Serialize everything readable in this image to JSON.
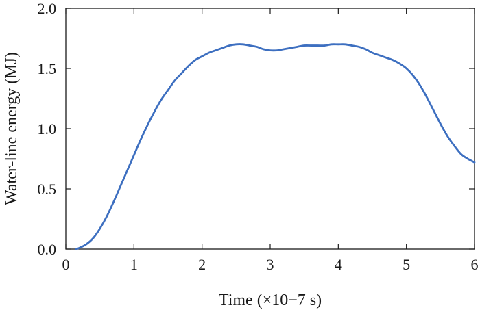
{
  "chart_data": {
    "type": "line",
    "xlabel": "Time (×10−7 s)",
    "ylabel": "Water-line energy (MJ)",
    "xlim": [
      0,
      6
    ],
    "ylim": [
      0,
      2
    ],
    "x_ticks": [
      "0",
      "1",
      "2",
      "3",
      "4",
      "5",
      "6"
    ],
    "y_ticks": [
      "0.0",
      "0.5",
      "1.0",
      "1.5",
      "2.0"
    ],
    "grid": false,
    "series": [
      {
        "color": "#3d6fc0",
        "x": [
          0.15,
          0.2,
          0.3,
          0.4,
          0.5,
          0.6,
          0.7,
          0.8,
          0.9,
          1.0,
          1.1,
          1.2,
          1.3,
          1.4,
          1.5,
          1.6,
          1.7,
          1.8,
          1.9,
          2.0,
          2.1,
          2.2,
          2.3,
          2.4,
          2.5,
          2.6,
          2.7,
          2.8,
          2.9,
          3.0,
          3.1,
          3.2,
          3.3,
          3.4,
          3.5,
          3.6,
          3.7,
          3.8,
          3.9,
          4.0,
          4.1,
          4.2,
          4.3,
          4.4,
          4.5,
          4.6,
          4.7,
          4.8,
          4.9,
          5.0,
          5.1,
          5.2,
          5.3,
          5.4,
          5.5,
          5.6,
          5.7,
          5.8,
          5.9,
          6.0
        ],
        "y": [
          0.0,
          0.01,
          0.04,
          0.09,
          0.17,
          0.27,
          0.39,
          0.52,
          0.65,
          0.78,
          0.91,
          1.03,
          1.14,
          1.24,
          1.32,
          1.4,
          1.46,
          1.52,
          1.57,
          1.6,
          1.63,
          1.65,
          1.67,
          1.69,
          1.7,
          1.7,
          1.69,
          1.68,
          1.66,
          1.65,
          1.65,
          1.66,
          1.67,
          1.68,
          1.69,
          1.69,
          1.69,
          1.69,
          1.7,
          1.7,
          1.7,
          1.69,
          1.68,
          1.66,
          1.63,
          1.61,
          1.59,
          1.57,
          1.54,
          1.5,
          1.44,
          1.36,
          1.26,
          1.15,
          1.04,
          0.94,
          0.86,
          0.79,
          0.75,
          0.72
        ]
      }
    ]
  }
}
